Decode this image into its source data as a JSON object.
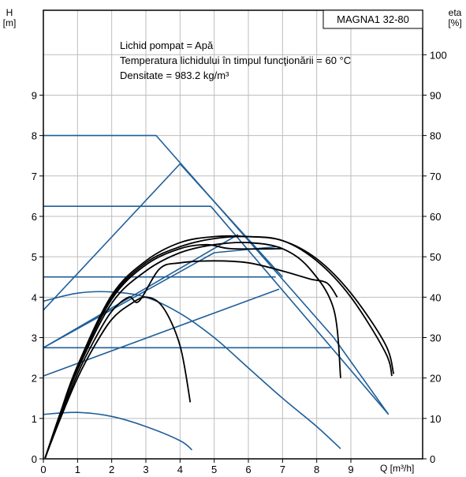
{
  "chart_data": {
    "type": "line",
    "title_box": "MAGNA1 32-80",
    "notes": [
      "Lichid pompat = Apă",
      "Temperatura lichidului în timpul funcţionării = 60 °C",
      "Densitate = 983.2 kg/m³"
    ],
    "y_left_label": [
      "H",
      "[m]"
    ],
    "y_right_label": [
      "eta",
      "[%]"
    ],
    "x_label": "Q [m³/h]",
    "xlim": [
      0,
      11.1
    ],
    "ylim_left": [
      0,
      11.1
    ],
    "ylim_right": [
      0,
      111
    ],
    "x_ticks": [
      "0",
      "1",
      "2",
      "3",
      "4",
      "5",
      "6",
      "7",
      "8",
      "9"
    ],
    "y_left_ticks": [
      "0",
      "1",
      "2",
      "3",
      "4",
      "5",
      "6",
      "7",
      "8",
      "9"
    ],
    "y_right_ticks": [
      "0",
      "10",
      "20",
      "30",
      "40",
      "50",
      "60",
      "70",
      "80",
      "90",
      "100"
    ],
    "grid": true,
    "colors": {
      "head_curves": "#1f5f99",
      "efficiency_curves": "#000000",
      "grid": "#bdbdbd"
    },
    "head_series": [
      {
        "points": [
          [
            0,
            8.0
          ],
          [
            3.3,
            8.0
          ],
          [
            8.5,
            3.0
          ],
          [
            10.1,
            1.1
          ]
        ]
      },
      {
        "points": [
          [
            0,
            6.25
          ],
          [
            4.9,
            6.25
          ],
          [
            10.1,
            1.1
          ]
        ]
      },
      {
        "points": [
          [
            0,
            4.5
          ],
          [
            6.8,
            4.5
          ]
        ]
      },
      {
        "points": [
          [
            0,
            2.75
          ],
          [
            8.4,
            2.75
          ]
        ]
      },
      {
        "points": [
          [
            0,
            3.68
          ],
          [
            4.0,
            7.3
          ],
          [
            7.0,
            4.5
          ]
        ]
      },
      {
        "points": [
          [
            0,
            2.75
          ],
          [
            5.7,
            5.55
          ]
        ]
      },
      {
        "points": [
          [
            0,
            2.75
          ],
          [
            5.0,
            5.1
          ],
          [
            6.8,
            5.25
          ]
        ]
      },
      {
        "points": [
          [
            0,
            2.05
          ],
          [
            6.9,
            4.2
          ]
        ]
      },
      {
        "points": [
          [
            0,
            3.9
          ],
          [
            1.0,
            4.1
          ],
          [
            2.0,
            4.13
          ],
          [
            3.0,
            4.0
          ],
          [
            4.0,
            3.6
          ],
          [
            5.0,
            3.0
          ],
          [
            6.0,
            2.25
          ],
          [
            7.0,
            1.5
          ],
          [
            8.0,
            0.8
          ],
          [
            8.7,
            0.25
          ]
        ]
      },
      {
        "points": [
          [
            0,
            1.1
          ],
          [
            1.0,
            1.15
          ],
          [
            2.0,
            1.05
          ],
          [
            3.0,
            0.8
          ],
          [
            4.0,
            0.45
          ],
          [
            4.35,
            0.22
          ]
        ]
      }
    ],
    "efficiency_series": [
      {
        "points": [
          [
            0.05,
            0.2
          ],
          [
            0.5,
            10.0
          ],
          [
            1.0,
            20.0
          ],
          [
            1.5,
            28.0
          ],
          [
            2.0,
            34.5
          ],
          [
            2.5,
            38.0
          ],
          [
            3.0,
            40.0
          ],
          [
            3.5,
            37.5
          ],
          [
            4.0,
            28.0
          ],
          [
            4.3,
            14.0
          ]
        ]
      },
      {
        "points": [
          [
            0.05,
            0.2
          ],
          [
            0.5,
            10.5
          ],
          [
            1.0,
            21.0
          ],
          [
            1.5,
            29.5
          ],
          [
            2.0,
            36.5
          ],
          [
            2.5,
            40.0
          ],
          [
            2.8,
            39.0
          ],
          [
            3.4,
            47.0
          ],
          [
            4.0,
            48.5
          ],
          [
            5.0,
            49.0
          ],
          [
            6.0,
            48.5
          ],
          [
            7.0,
            46.5
          ],
          [
            7.8,
            44.5
          ],
          [
            8.3,
            43.5
          ],
          [
            8.6,
            40.0
          ]
        ]
      },
      {
        "points": [
          [
            0.05,
            0.2
          ],
          [
            0.5,
            11.0
          ],
          [
            1.0,
            22.0
          ],
          [
            2.0,
            38.5
          ],
          [
            3.0,
            46.5
          ],
          [
            4.0,
            51.0
          ],
          [
            5.0,
            53.0
          ],
          [
            6.0,
            53.5
          ],
          [
            7.0,
            52.0
          ],
          [
            7.8,
            47.0
          ],
          [
            8.5,
            37.0
          ],
          [
            8.7,
            20.0
          ]
        ]
      },
      {
        "points": [
          [
            0.05,
            0.2
          ],
          [
            0.5,
            11.5
          ],
          [
            1.0,
            23.0
          ],
          [
            2.0,
            40.0
          ],
          [
            3.0,
            48.5
          ],
          [
            4.0,
            52.5
          ],
          [
            5.0,
            54.5
          ],
          [
            6.0,
            55.0
          ],
          [
            7.0,
            54.0
          ],
          [
            8.0,
            49.0
          ],
          [
            9.0,
            40.0
          ],
          [
            10.0,
            26.5
          ],
          [
            10.2,
            20.5
          ]
        ]
      },
      {
        "points": [
          [
            0.05,
            0.2
          ],
          [
            0.5,
            11.0
          ],
          [
            1.0,
            22.5
          ],
          [
            2.0,
            39.5
          ],
          [
            3.0,
            48.0
          ],
          [
            4.0,
            52.0
          ],
          [
            4.8,
            53.0
          ],
          [
            5.5,
            52.0
          ],
          [
            7.0,
            52.0
          ]
        ]
      },
      {
        "points": [
          [
            0.05,
            0.2
          ],
          [
            0.5,
            11.0
          ],
          [
            1.0,
            23.0
          ],
          [
            2.0,
            40.5
          ],
          [
            3.0,
            49.0
          ],
          [
            4.0,
            53.5
          ],
          [
            5.0,
            55.0
          ],
          [
            6.0,
            55.0
          ],
          [
            7.0,
            54.0
          ],
          [
            8.0,
            49.5
          ],
          [
            9.0,
            41.0
          ],
          [
            10.0,
            28.5
          ],
          [
            10.25,
            21.0
          ]
        ]
      }
    ]
  }
}
